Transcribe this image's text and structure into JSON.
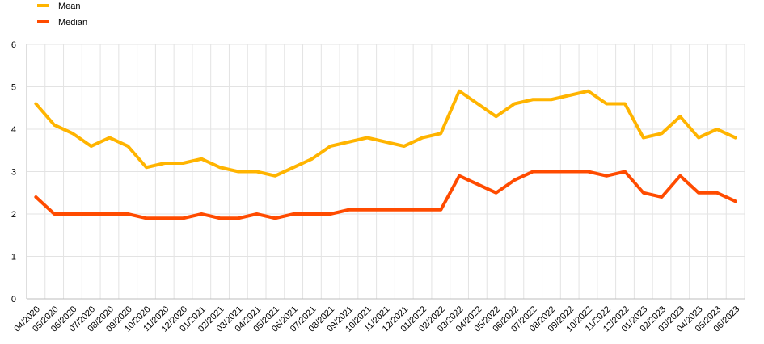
{
  "chart_data": {
    "type": "line",
    "title": "",
    "xlabel": "",
    "ylabel": "",
    "ylim": [
      0,
      6
    ],
    "yticks": [
      "0",
      "1",
      "2",
      "3",
      "4",
      "5",
      "6"
    ],
    "grid": true,
    "legend_position": "top-left",
    "categories": [
      "04/2020",
      "05/2020",
      "06/2020",
      "07/2020",
      "08/2020",
      "09/2020",
      "10/2020",
      "11/2020",
      "12/2020",
      "01/2021",
      "02/2021",
      "03/2021",
      "04/2021",
      "05/2021",
      "06/2021",
      "07/2021",
      "08/2021",
      "09/2021",
      "10/2021",
      "11/2021",
      "12/2021",
      "01/2022",
      "02/2022",
      "03/2022",
      "04/2022",
      "05/2022",
      "06/2022",
      "07/2022",
      "08/2022",
      "09/2022",
      "10/2022",
      "11/2022",
      "12/2022",
      "01/2023",
      "02/2023",
      "03/2023",
      "04/2023",
      "05/2023",
      "06/2023"
    ],
    "series": [
      {
        "name": "Mean",
        "color": "#ffb400",
        "values": [
          4.6,
          4.1,
          3.9,
          3.6,
          3.8,
          3.6,
          3.1,
          3.2,
          3.2,
          3.3,
          3.1,
          3.0,
          3.0,
          2.9,
          3.1,
          3.3,
          3.6,
          3.7,
          3.8,
          3.7,
          3.6,
          3.8,
          3.9,
          4.9,
          4.6,
          4.3,
          4.6,
          4.7,
          4.7,
          4.8,
          4.9,
          4.6,
          4.6,
          3.8,
          3.9,
          4.3,
          3.8,
          4.0,
          3.8
        ]
      },
      {
        "name": "Median",
        "color": "#ff4b00",
        "values": [
          2.4,
          2.0,
          2.0,
          2.0,
          2.0,
          2.0,
          1.9,
          1.9,
          1.9,
          2.0,
          1.9,
          1.9,
          2.0,
          1.9,
          2.0,
          2.0,
          2.0,
          2.1,
          2.1,
          2.1,
          2.1,
          2.1,
          2.1,
          2.9,
          2.7,
          2.5,
          2.8,
          3.0,
          3.0,
          3.0,
          3.0,
          2.9,
          3.0,
          2.5,
          2.4,
          2.9,
          2.5,
          2.5,
          2.3
        ]
      }
    ]
  }
}
